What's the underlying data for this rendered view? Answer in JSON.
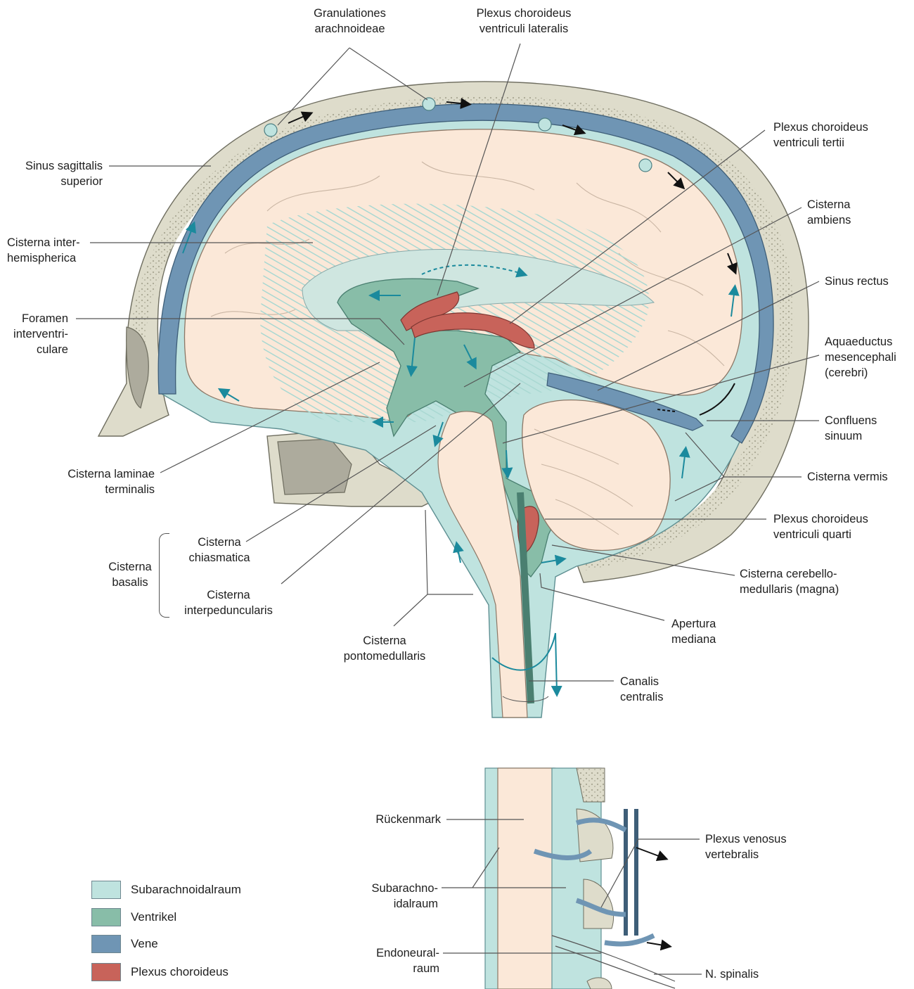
{
  "labels": {
    "granulationes": [
      "Granulationes",
      "arachnoideae"
    ],
    "plexus_lat": [
      "Plexus choroideus",
      "ventriculi lateralis"
    ],
    "plexus_tertii": [
      "Plexus choroideus",
      "ventriculi tertii"
    ],
    "sinus_sag": [
      "Sinus sagittalis",
      "superior"
    ],
    "cisterna_inter": [
      "Cisterna inter-",
      "hemispherica"
    ],
    "cisterna_ambiens": [
      "Cisterna",
      "ambiens"
    ],
    "sinus_rectus": [
      "Sinus rectus"
    ],
    "foramen": [
      "Foramen",
      "interventri-",
      "culare"
    ],
    "aquaeductus": [
      "Aquaeductus",
      "mesencephali",
      "(cerebri)"
    ],
    "confluens": [
      "Confluens",
      "sinuum"
    ],
    "laminae": [
      "Cisterna laminae",
      "terminalis"
    ],
    "vermis": [
      "Cisterna vermis"
    ],
    "plexus_quarti": [
      "Plexus choroideus",
      "ventriculi quarti"
    ],
    "chiasmatica": [
      "Cisterna",
      "chiasmatica"
    ],
    "basalis": [
      "Cisterna",
      "basalis"
    ],
    "magna": [
      "Cisterna cerebello-",
      "medullaris (magna)"
    ],
    "interped": [
      "Cisterna",
      "interpeduncularis"
    ],
    "apertura": [
      "Apertura",
      "mediana"
    ],
    "pontomed": [
      "Cisterna",
      "pontomedullaris"
    ],
    "canalis": [
      "Canalis",
      "centralis"
    ],
    "rueckenmark": [
      "Rückenmark"
    ],
    "subarach2": [
      "Subarachno-",
      "idalraum"
    ],
    "plexus_venosus": [
      "Plexus venosus",
      "vertebralis"
    ],
    "endoneural": [
      "Endoneural-",
      "raum"
    ],
    "spinalis": [
      "N. spinalis"
    ]
  },
  "legend": [
    {
      "label": "Subarachnoidalraum",
      "color": "#bfe3df"
    },
    {
      "label": "Ventrikel",
      "color": "#88bda8"
    },
    {
      "label": "Vene",
      "color": "#6f95b4"
    },
    {
      "label": "Plexus choroideus",
      "color": "#c8635a"
    }
  ],
  "colors": {
    "bone": "#dedccb",
    "csf": "#bfe3df",
    "ventricle": "#88bda8",
    "vein": "#6f95b4",
    "plexus": "#c8635a",
    "brain": "#fbe8d8",
    "arrow": "#1b8a9d"
  }
}
